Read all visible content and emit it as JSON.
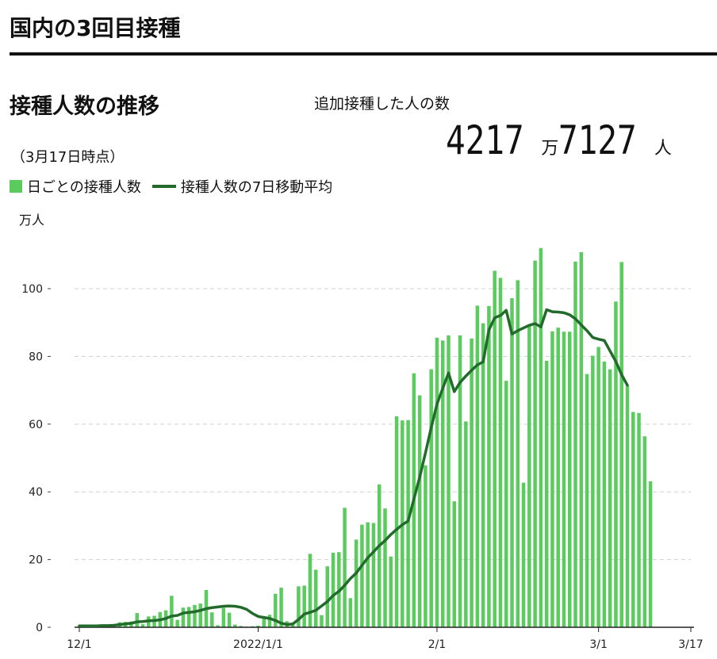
{
  "page": {
    "title": "国内の3回目接種",
    "section_title": "接種人数の推移",
    "date_note": "（3月17日時点）",
    "total_label": "追加接種した人の数",
    "total_man_value": "4217",
    "total_man_unit": "万",
    "total_rest_value": "7127",
    "total_rest_unit": "人",
    "y_unit": "万人"
  },
  "colors": {
    "bar": "#5ccb5f",
    "line": "#226b2c",
    "grid": "#d0d0d0",
    "text": "#111111"
  },
  "chart_data": {
    "type": "bar",
    "start_date": "2021-12-01",
    "end_date": "2022-03-17",
    "ylim": [
      0,
      115
    ],
    "yticks": [
      0,
      20,
      40,
      60,
      80,
      100
    ],
    "xticks": [
      {
        "date": "2021-12-01",
        "label": "12/1"
      },
      {
        "date": "2022-01-01",
        "label": "2022/1/1"
      },
      {
        "date": "2022-02-01",
        "label": "2/1"
      },
      {
        "date": "2022-03-01",
        "label": "3/1"
      },
      {
        "date": "2022-03-17",
        "label": "3/17"
      }
    ],
    "grid": true,
    "legend": [
      "日ごとの接種人数",
      "接種人数の7日移動平均"
    ],
    "series": [
      {
        "name": "日ごとの接種人数",
        "kind": "bar",
        "values": [
          0.3,
          0.4,
          0.8,
          0.3,
          0.4,
          0.5,
          0.7,
          1.5,
          1.6,
          1.7,
          4.2,
          0.9,
          3.2,
          3.4,
          4.5,
          5.0,
          9.3,
          2.2,
          5.8,
          6.0,
          6.6,
          7.0,
          11.0,
          4.4,
          0.6,
          5.7,
          4.3,
          0.8,
          0.4,
          0.2,
          0.3,
          0.5,
          2.9,
          3.7,
          9.9,
          11.7,
          1.8,
          0.8,
          12.1,
          12.3,
          21.7,
          17.0,
          3.6,
          18.0,
          22.0,
          22.2,
          35.3,
          8.6,
          25.9,
          30.3,
          31.0,
          30.8,
          42.2,
          35.1,
          20.9,
          62.3,
          61.1,
          61.2,
          75.0,
          68.5,
          47.8,
          76.2,
          85.5,
          84.7,
          86.2,
          37.2,
          86.2,
          60.8,
          85.3,
          95.0,
          89.8,
          94.9,
          105.3,
          103.2,
          72.8,
          97.2,
          102.5,
          42.7,
          88.9,
          108.3,
          112.0,
          78.7,
          87.4,
          88.5,
          87.3,
          87.3,
          108.0,
          110.8,
          74.8,
          80.2,
          82.8,
          78.5,
          76.2,
          96.2,
          107.9,
          71.3,
          63.6,
          63.3,
          56.4,
          43.1
        ]
      },
      {
        "name": "接種人数の7日移動平均",
        "kind": "line",
        "values": [
          0.4,
          0.4,
          0.4,
          0.4,
          0.5,
          0.5,
          0.6,
          0.8,
          1.0,
          1.2,
          1.6,
          1.7,
          1.9,
          2.0,
          2.2,
          2.6,
          3.3,
          3.5,
          4.2,
          4.4,
          4.6,
          5.0,
          5.5,
          5.8,
          6.0,
          6.2,
          6.3,
          6.2,
          5.9,
          5.3,
          4.1,
          3.2,
          2.9,
          2.6,
          2.0,
          1.2,
          0.8,
          1.0,
          2.3,
          3.9,
          4.4,
          5.0,
          6.3,
          7.6,
          9.4,
          10.6,
          12.4,
          14.4,
          16.0,
          18.3,
          20.5,
          22.3,
          24.1,
          25.6,
          27.4,
          28.9,
          30.3,
          31.4,
          37.9,
          44.3,
          51.5,
          59.0,
          65.9,
          70.6,
          75.1,
          69.6,
          72.3,
          74.2,
          75.9,
          77.5,
          78.4,
          87.8,
          91.4,
          92.1,
          93.6,
          86.6,
          87.6,
          88.4,
          89.2,
          89.7,
          88.7,
          93.8,
          93.2,
          93.1,
          92.9,
          92.3,
          91.1,
          89.3,
          87.6,
          85.6,
          85.1,
          84.7,
          81.6,
          78.5,
          74.6,
          71.5
        ]
      }
    ]
  }
}
